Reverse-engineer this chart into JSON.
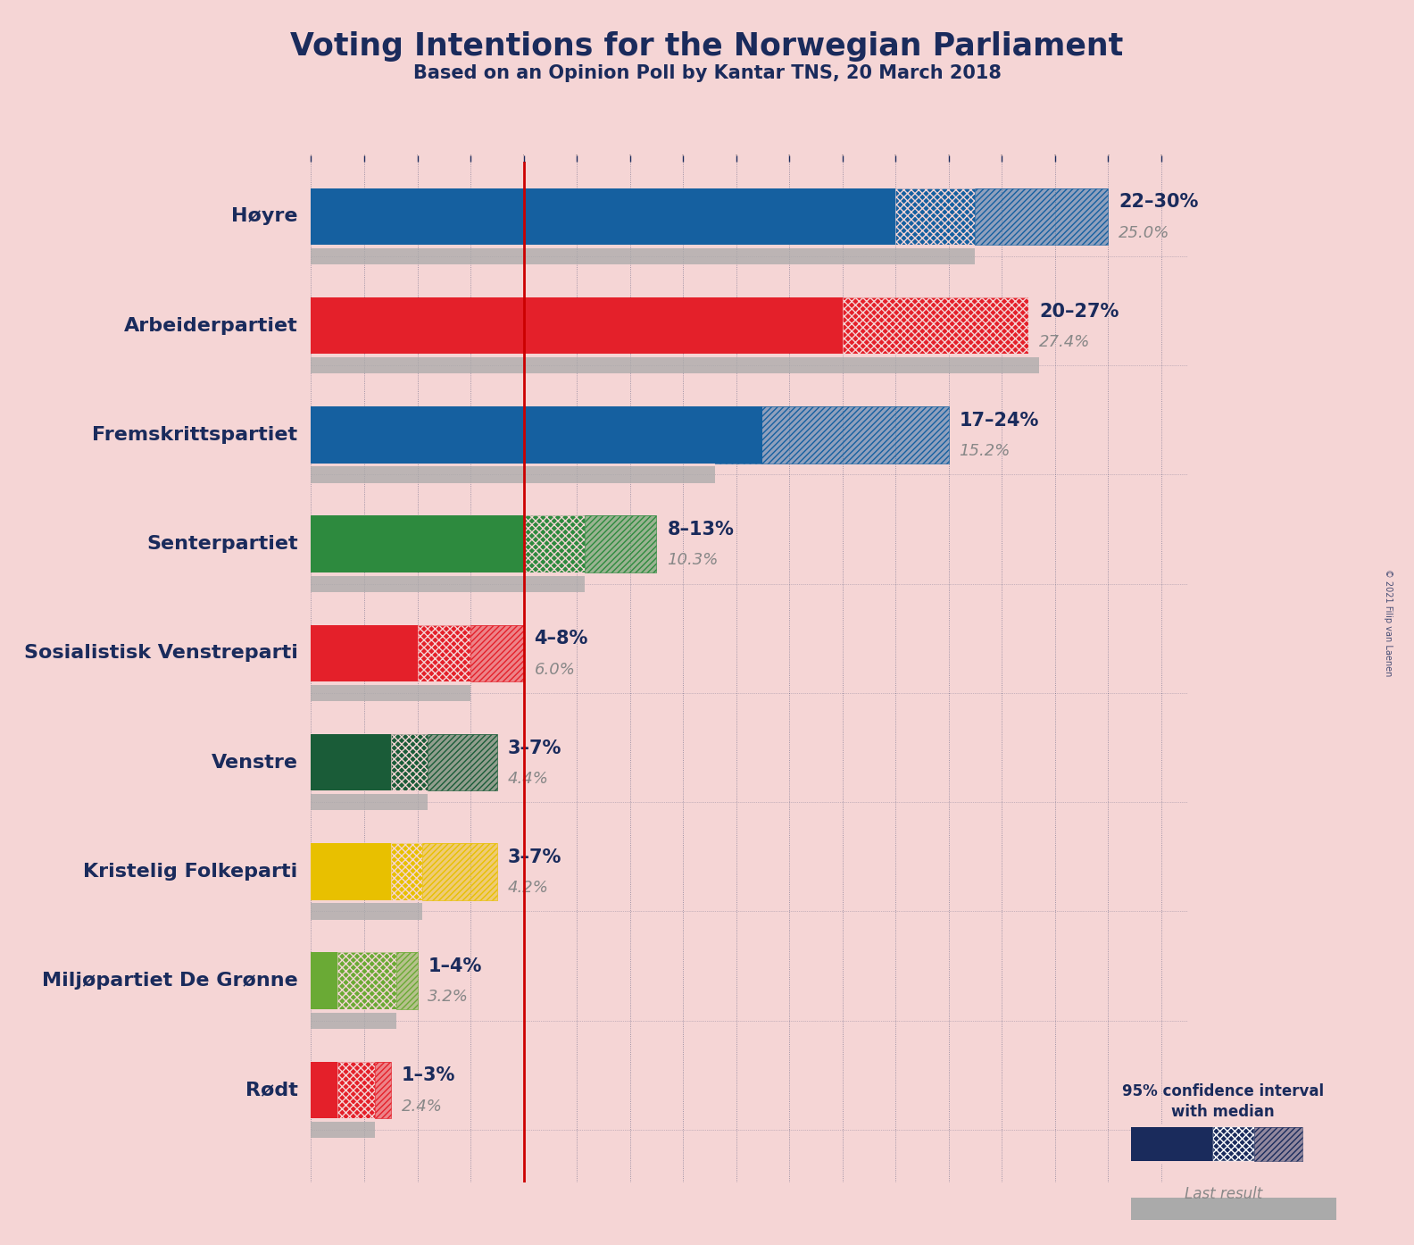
{
  "title": "Voting Intentions for the Norwegian Parliament",
  "subtitle": "Based on an Opinion Poll by Kantar TNS, 20 March 2018",
  "copyright": "© 2021 Filip van Laenen",
  "background_color": "#f5d5d5",
  "parties": [
    {
      "name": "Høyre",
      "ci_low": 22,
      "ci_high": 30,
      "median": 25.0,
      "last_result": 25.0,
      "color": "#1560a0",
      "label": "22–30%",
      "label2": "25.0%"
    },
    {
      "name": "Arbeiderpartiet",
      "ci_low": 20,
      "ci_high": 27,
      "median": 27.4,
      "last_result": 27.4,
      "color": "#e4202a",
      "label": "20–27%",
      "label2": "27.4%"
    },
    {
      "name": "Fremskrittspartiet",
      "ci_low": 17,
      "ci_high": 24,
      "median": 15.2,
      "last_result": 15.2,
      "color": "#1560a0",
      "label": "17–24%",
      "label2": "15.2%"
    },
    {
      "name": "Senterpartiet",
      "ci_low": 8,
      "ci_high": 13,
      "median": 10.3,
      "last_result": 10.3,
      "color": "#2d8a3e",
      "label": "8–13%",
      "label2": "10.3%"
    },
    {
      "name": "Sosialistisk Venstreparti",
      "ci_low": 4,
      "ci_high": 8,
      "median": 6.0,
      "last_result": 6.0,
      "color": "#e4202a",
      "label": "4–8%",
      "label2": "6.0%"
    },
    {
      "name": "Venstre",
      "ci_low": 3,
      "ci_high": 7,
      "median": 4.4,
      "last_result": 4.4,
      "color": "#1a5c38",
      "label": "3–7%",
      "label2": "4.4%"
    },
    {
      "name": "Kristelig Folkeparti",
      "ci_low": 3,
      "ci_high": 7,
      "median": 4.2,
      "last_result": 4.2,
      "color": "#e8c000",
      "label": "3–7%",
      "label2": "4.2%"
    },
    {
      "name": "Miljøpartiet De Grønne",
      "ci_low": 1,
      "ci_high": 4,
      "median": 3.2,
      "last_result": 3.2,
      "color": "#6aaa35",
      "label": "1–4%",
      "label2": "3.2%"
    },
    {
      "name": "Rødt",
      "ci_low": 1,
      "ci_high": 3,
      "median": 2.4,
      "last_result": 2.4,
      "color": "#e4202a",
      "label": "1–3%",
      "label2": "2.4%"
    }
  ],
  "xmax": 33,
  "red_line_x": 8.0,
  "dark_blue": "#1a2b5c",
  "gray_color": "#aaaaaa",
  "label_color": "#1a2b5c",
  "pct_color": "#888888"
}
